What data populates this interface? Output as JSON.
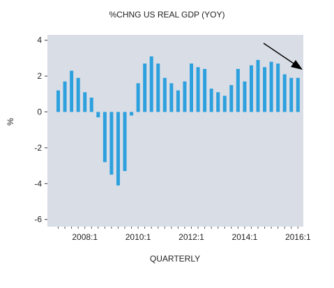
{
  "chart_data": {
    "type": "bar",
    "title": "%CHNG US REAL GDP (YOY)",
    "xlabel": "QUARTERLY",
    "ylabel": "%",
    "ylim": [
      -6.4,
      4.3
    ],
    "yticks": [
      4,
      2,
      0,
      -2,
      -4,
      -6
    ],
    "grid": false,
    "bar_color": "#2da0de",
    "plot_bg": "#d9dde6",
    "categories": [
      "2007:1",
      "2007:2",
      "2007:3",
      "2007:4",
      "2008:1",
      "2008:2",
      "2008:3",
      "2008:4",
      "2009:1",
      "2009:2",
      "2009:3",
      "2009:4",
      "2010:1",
      "2010:2",
      "2010:3",
      "2010:4",
      "2011:1",
      "2011:2",
      "2011:3",
      "2011:4",
      "2012:1",
      "2012:2",
      "2012:3",
      "2012:4",
      "2013:1",
      "2013:2",
      "2013:3",
      "2013:4",
      "2014:1",
      "2014:2",
      "2014:3",
      "2014:4",
      "2015:1",
      "2015:2",
      "2015:3",
      "2015:4",
      "2016:1"
    ],
    "values": [
      1.2,
      1.7,
      2.3,
      1.9,
      1.1,
      0.8,
      -0.3,
      -2.8,
      -3.5,
      -4.1,
      -3.3,
      -0.2,
      1.6,
      2.7,
      3.1,
      2.7,
      1.9,
      1.6,
      1.2,
      1.7,
      2.7,
      2.5,
      2.4,
      1.3,
      1.1,
      0.9,
      1.5,
      2.4,
      1.7,
      2.6,
      2.9,
      2.5,
      2.8,
      2.7,
      2.1,
      1.9,
      1.9
    ],
    "tick_labels": [
      {
        "label": "2008:1",
        "index": 4
      },
      {
        "label": "2010:1",
        "index": 12
      },
      {
        "label": "2012:1",
        "index": 20
      },
      {
        "label": "2014:1",
        "index": 28
      },
      {
        "label": "2016:1",
        "index": 36
      }
    ],
    "annotation": {
      "type": "arrow",
      "direction": "down-right",
      "color": "#000000"
    }
  }
}
